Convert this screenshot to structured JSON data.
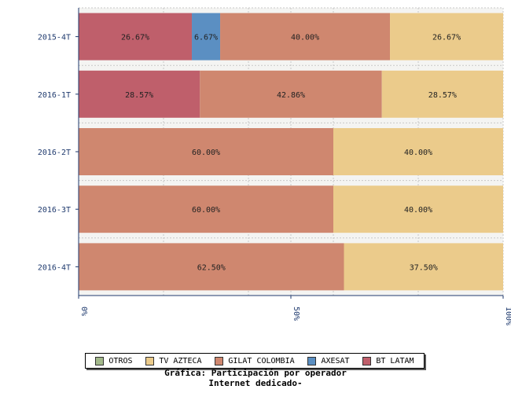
{
  "chart_data": {
    "type": "bar",
    "orientation": "horizontal",
    "stacked": true,
    "normalized": true,
    "categories": [
      "2015-4T",
      "2016-1T",
      "2016-2T",
      "2016-3T",
      "2016-4T"
    ],
    "series": [
      {
        "name": "OTROS",
        "color": "#a3b98b",
        "values": [
          0,
          0,
          0,
          0,
          0
        ],
        "labels": [
          "",
          "",
          "",
          "",
          ""
        ]
      },
      {
        "name": "BT LATAM",
        "color": "#bf5f6b",
        "values": [
          26.67,
          28.57,
          0,
          0,
          0
        ],
        "labels": [
          "26.67%",
          "28.57%",
          "",
          "",
          ""
        ]
      },
      {
        "name": "AXESAT",
        "color": "#5b8fc2",
        "values": [
          6.67,
          0,
          0,
          0,
          0
        ],
        "labels": [
          "6.67%",
          "",
          "",
          "",
          ""
        ]
      },
      {
        "name": "GILAT COLOMBIA",
        "color": "#cf876f",
        "values": [
          40.0,
          42.86,
          60.0,
          60.0,
          62.5
        ],
        "labels": [
          "40.00%",
          "42.86%",
          "60.00%",
          "60.00%",
          "62.50%"
        ]
      },
      {
        "name": "TV AZTECA",
        "color": "#ebcb8b",
        "values": [
          26.67,
          28.57,
          40.0,
          40.0,
          37.5
        ],
        "labels": [
          "26.67%",
          "28.57%",
          "40.00%",
          "40.00%",
          "37.50%"
        ]
      }
    ],
    "xlim": [
      0,
      100
    ],
    "x_ticks": [
      "0%",
      "50%",
      "100%"
    ],
    "legend_order": [
      "OTROS",
      "TV AZTECA",
      "GILAT COLOMBIA",
      "AXESAT",
      "BT LATAM"
    ],
    "legend_position": "bottom",
    "grid": true
  },
  "caption": {
    "line1": "Gráfica: Participación por operador",
    "line2": "Internet dedicado-"
  }
}
